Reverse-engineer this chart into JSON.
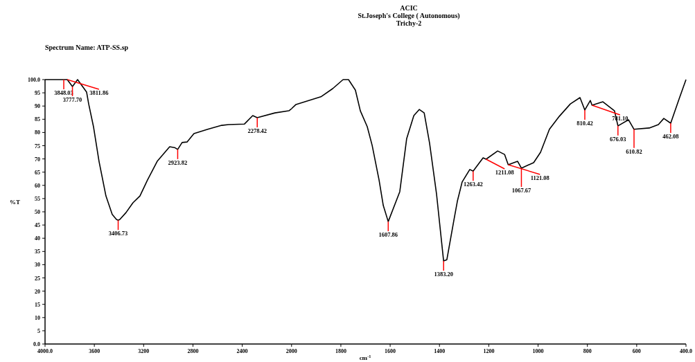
{
  "chart_data": [
    {
      "type": "line",
      "subtitle": "Spectrum Name: ATP-SS.sp",
      "ylabel": "%T",
      "x": [
        4000,
        3848,
        3820,
        3777.7,
        3736,
        3663,
        3646,
        3607,
        3562,
        3506,
        3455,
        3421,
        3406.73,
        3393,
        3343,
        3287,
        3230,
        3169,
        3090,
        2989,
        2949,
        2923.82,
        2888,
        2848,
        2792,
        2680,
        2567,
        2511,
        2382,
        2315,
        2278.42,
        2135,
        2022,
        2000
      ],
      "series": [
        {
          "color": "#000000",
          "values": [
            100,
            100,
            100,
            97.4,
            100,
            95.3,
            90.8,
            82.2,
            69.1,
            56,
            49,
            47.1,
            46.8,
            47.1,
            49.7,
            53.4,
            56,
            62,
            69.1,
            74.6,
            74.3,
            73.6,
            76.2,
            76.4,
            79.6,
            81.2,
            82.7,
            83,
            83.2,
            86.4,
            85.6,
            87.4,
            88.2,
            89
          ]
        }
      ],
      "xlim": [
        4000,
        2000
      ],
      "xticks": [
        {
          "value": 4000,
          "label": "4000.0"
        },
        3600,
        3200,
        2800,
        2400,
        2000
      ],
      "ylim": [
        0,
        100
      ],
      "yticks": [
        {
          "value": 0,
          "label": "0.0"
        },
        5,
        10,
        15,
        20,
        25,
        30,
        35,
        40,
        45,
        50,
        55,
        60,
        65,
        70,
        75,
        80,
        85,
        90,
        95,
        {
          "value": 100,
          "label": "100.0"
        }
      ],
      "grid": false,
      "marker": "none",
      "line_style": "solid",
      "annotations": [
        {
          "text": "3848.03",
          "x": 3848,
          "y": 100
        },
        {
          "text": "3811.86",
          "x": 3820,
          "y": 100
        },
        {
          "text": "3777.70",
          "x": 3777.7,
          "y": 97.4
        },
        {
          "text": "3406.73",
          "x": 3406.73,
          "y": 46.8
        },
        {
          "text": "2923.82",
          "x": 2923.82,
          "y": 73.6
        },
        {
          "text": "2278.42",
          "x": 2278.42,
          "y": 85.6
        }
      ]
    },
    {
      "type": "line",
      "title": "ACIC\nSt.Joseph's College ( Autonomous)\nTrichy-2",
      "xlabel": "cm$^{-1}$",
      "x": [
        2000,
        1982,
        1881,
        1833,
        1791,
        1769,
        1741,
        1721,
        1693,
        1673,
        1645,
        1628,
        1607.86,
        1561,
        1533,
        1504,
        1482,
        1462,
        1440,
        1412,
        1383.2,
        1370,
        1341,
        1327,
        1308,
        1277,
        1263.42,
        1223,
        1211.08,
        1164,
        1136,
        1121.08,
        1083,
        1067.67,
        1018,
        990,
        954,
        914,
        869,
        830,
        810.42,
        788,
        781.1,
        737,
        690,
        676.03,
        633,
        610.82,
        549,
        512,
        490,
        462.08,
        428,
        400
      ],
      "series": [
        {
          "color": "#000000",
          "values": [
            89,
            90.6,
            93.5,
            96.6,
            100,
            100,
            96,
            88.2,
            82.2,
            75.1,
            62,
            52.4,
            46.3,
            57.6,
            77.7,
            86.4,
            88.7,
            87.4,
            75.9,
            56.8,
            31.4,
            31.9,
            47.1,
            54.2,
            61.3,
            66,
            65.4,
            70.4,
            69.9,
            73,
            71.7,
            67.8,
            69.1,
            66.5,
            68.6,
            72.5,
            81.2,
            86.1,
            90.8,
            93.2,
            88.5,
            92.1,
            90.3,
            91.6,
            88.2,
            82.5,
            84.8,
            81.2,
            81.7,
            83,
            85.3,
            83.5,
            92.7,
            100
          ]
        }
      ],
      "xlim": [
        2000,
        400
      ],
      "xticks": [
        1800,
        1600,
        1400,
        1200,
        1000,
        800,
        600,
        {
          "value": 400,
          "label": "400.0"
        }
      ],
      "ylim": [
        0,
        100
      ],
      "tick_labels": "x",
      "grid": false,
      "marker": "none",
      "line_style": "solid",
      "annotations": [
        {
          "text": "1607.86",
          "x": 1607.86,
          "y": 46.3
        },
        {
          "text": "1383.20",
          "x": 1383.2,
          "y": 31.4
        },
        {
          "text": "1263.42",
          "x": 1263.42,
          "y": 65.4
        },
        {
          "text": "1211.08",
          "x": 1211.08,
          "y": 69.9
        },
        {
          "text": "1121.08",
          "x": 1121.08,
          "y": 67.8
        },
        {
          "text": "1067.67",
          "x": 1067.67,
          "y": 66.5
        },
        {
          "text": "810.42",
          "x": 810.42,
          "y": 88.5
        },
        {
          "text": "781.10",
          "x": 781.1,
          "y": 90.3
        },
        {
          "text": "676.03",
          "x": 676.03,
          "y": 82.5
        },
        {
          "text": "610.82",
          "x": 610.82,
          "y": 81.2
        },
        {
          "text": "462.08",
          "x": 462.08,
          "y": 83.5
        }
      ]
    }
  ]
}
